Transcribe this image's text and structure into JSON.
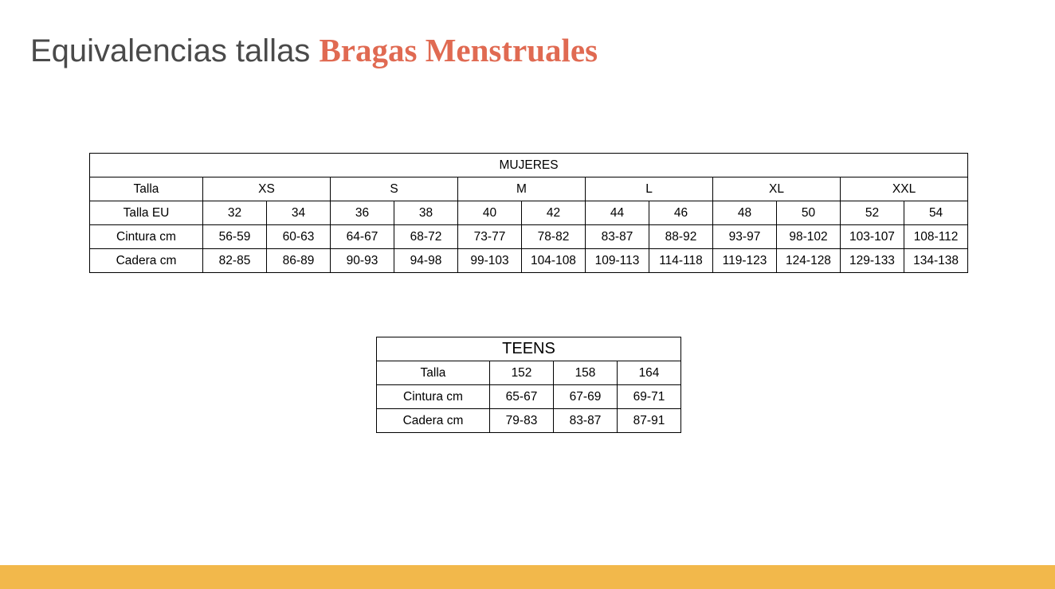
{
  "title": {
    "plain": "Equivalencias tallas",
    "accent": "Bragas Menstruales"
  },
  "colors": {
    "title_text": "#4a4a4a",
    "accent": "#e06a52",
    "bottom_bar": "#f2b84b"
  },
  "mujeres": {
    "heading": "MUJERES",
    "size_row": {
      "label": "Talla",
      "sizes": [
        "XS",
        "S",
        "M",
        "L",
        "XL",
        "XXL"
      ]
    },
    "rows": [
      {
        "label": "Talla EU",
        "values": [
          "32",
          "34",
          "36",
          "38",
          "40",
          "42",
          "44",
          "46",
          "48",
          "50",
          "52",
          "54"
        ]
      },
      {
        "label": "Cintura cm",
        "values": [
          "56-59",
          "60-63",
          "64-67",
          "68-72",
          "73-77",
          "78-82",
          "83-87",
          "88-92",
          "93-97",
          "98-102",
          "103-107",
          "108-112"
        ]
      },
      {
        "label": "Cadera cm",
        "values": [
          "82-85",
          "86-89",
          "90-93",
          "94-98",
          "99-103",
          "104-108",
          "109-113",
          "114-118",
          "119-123",
          "124-128",
          "129-133",
          "134-138"
        ]
      }
    ]
  },
  "teens": {
    "heading": "TEENS",
    "rows": [
      {
        "label": "Talla",
        "values": [
          "152",
          "158",
          "164"
        ]
      },
      {
        "label": "Cintura cm",
        "values": [
          "65-67",
          "67-69",
          "69-71"
        ]
      },
      {
        "label": "Cadera cm",
        "values": [
          "79-83",
          "83-87",
          "87-91"
        ]
      }
    ]
  }
}
